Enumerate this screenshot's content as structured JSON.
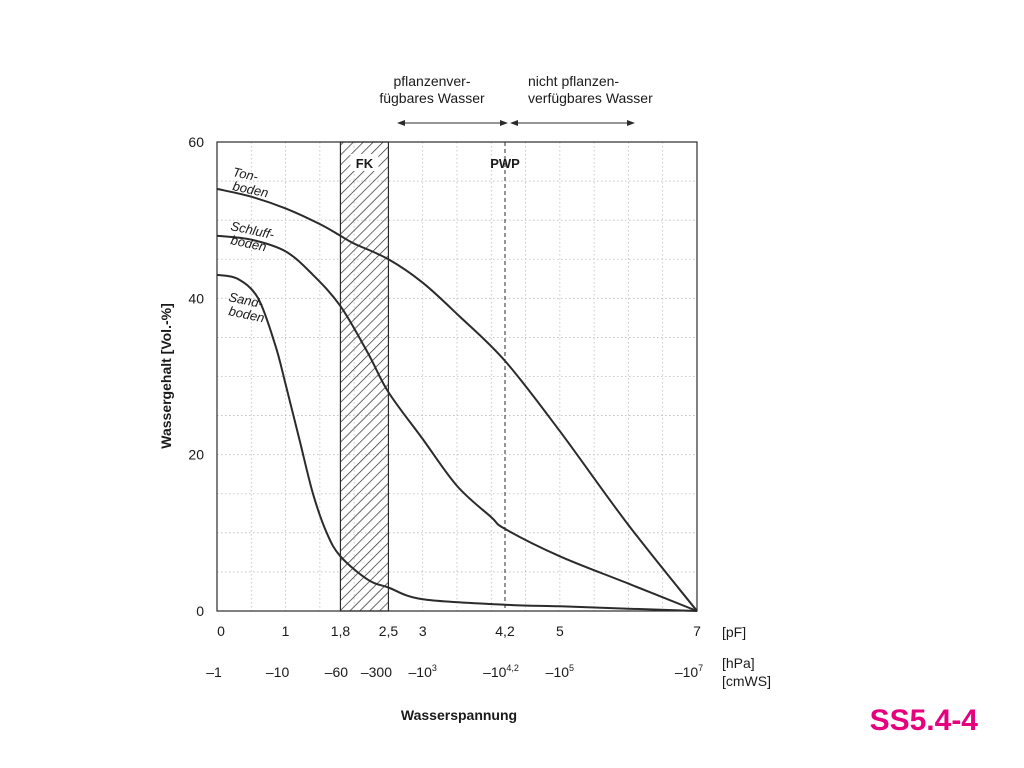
{
  "slide_code": "SS5.4-4",
  "annotations": {
    "left_top": [
      "pflanzenver-",
      "fügbares Wasser"
    ],
    "right_top": [
      "nicht pflanzen-",
      "verfügbares Wasser"
    ]
  },
  "colors": {
    "curve": "#2b2b2b",
    "grid": "#bdbdbd",
    "slide_code": "#e6007e"
  },
  "chart_data": {
    "type": "line",
    "title": "",
    "xlabel": "Wasserspannung",
    "ylabel": "Wassergehalt [Vol.-%]",
    "ylim": [
      0,
      60
    ],
    "y_ticks": [
      "0",
      "20",
      "40",
      "60"
    ],
    "xlim": [
      0,
      7
    ],
    "x_ticks_pf": [
      {
        "x": 0,
        "label": "0"
      },
      {
        "x": 1,
        "label": "1"
      },
      {
        "x": 1.8,
        "label": "1,8"
      },
      {
        "x": 2.5,
        "label": "2,5"
      },
      {
        "x": 3,
        "label": "3"
      },
      {
        "x": 4.2,
        "label": "4,2"
      },
      {
        "x": 5,
        "label": "5"
      },
      {
        "x": 7,
        "label": "7"
      }
    ],
    "x_unit_pf": "[pF]",
    "x_ticks_pressure": [
      {
        "x": 0,
        "base": "–1",
        "exp": ""
      },
      {
        "x": 1,
        "base": "–10",
        "exp": ""
      },
      {
        "x": 1.8,
        "base": "–60",
        "exp": ""
      },
      {
        "x": 2.5,
        "base": "–300",
        "exp": ""
      },
      {
        "x": 3,
        "base": "–10",
        "exp": "3"
      },
      {
        "x": 4.2,
        "base": "–10",
        "exp": "4,2"
      },
      {
        "x": 5,
        "base": "–10",
        "exp": "5"
      },
      {
        "x": 7,
        "base": "–10",
        "exp": "7"
      }
    ],
    "x_units_pressure": [
      "[hPa]",
      "[cmWS]"
    ],
    "grid": true,
    "fk_band": {
      "from": 1.8,
      "to": 2.5,
      "label": "FK"
    },
    "pwp_line": {
      "x": 4.2,
      "label": "PWP"
    },
    "series": [
      {
        "name": "Ton-boden",
        "label_lines": [
          "Ton-",
          "boden"
        ],
        "x": [
          0,
          0.5,
          1,
          1.5,
          1.8,
          2,
          2.5,
          3,
          3.5,
          4.2,
          5,
          6,
          7
        ],
        "y": [
          54,
          53,
          51.5,
          49.5,
          48,
          47,
          45,
          42,
          38,
          32,
          23,
          11,
          0
        ]
      },
      {
        "name": "Schluff-boden",
        "label_lines": [
          "Schluff-",
          "boden"
        ],
        "x": [
          0,
          0.5,
          1,
          1.4,
          1.8,
          2.2,
          2.5,
          3,
          3.5,
          4,
          4.2,
          5,
          6,
          7
        ],
        "y": [
          48,
          47.5,
          46,
          43,
          39,
          33,
          28,
          22,
          16,
          12,
          10.5,
          7,
          3.5,
          0
        ]
      },
      {
        "name": "Sand-boden",
        "label_lines": [
          "Sand-",
          "boden"
        ],
        "x": [
          0,
          0.3,
          0.6,
          0.85,
          1,
          1.2,
          1.4,
          1.6,
          1.8,
          2.2,
          2.5,
          3,
          4.2,
          5,
          6,
          7
        ],
        "y": [
          43,
          42.5,
          40,
          34,
          29,
          22,
          15,
          10,
          7,
          4,
          3,
          1.5,
          0.8,
          0.6,
          0.3,
          0
        ]
      }
    ]
  }
}
